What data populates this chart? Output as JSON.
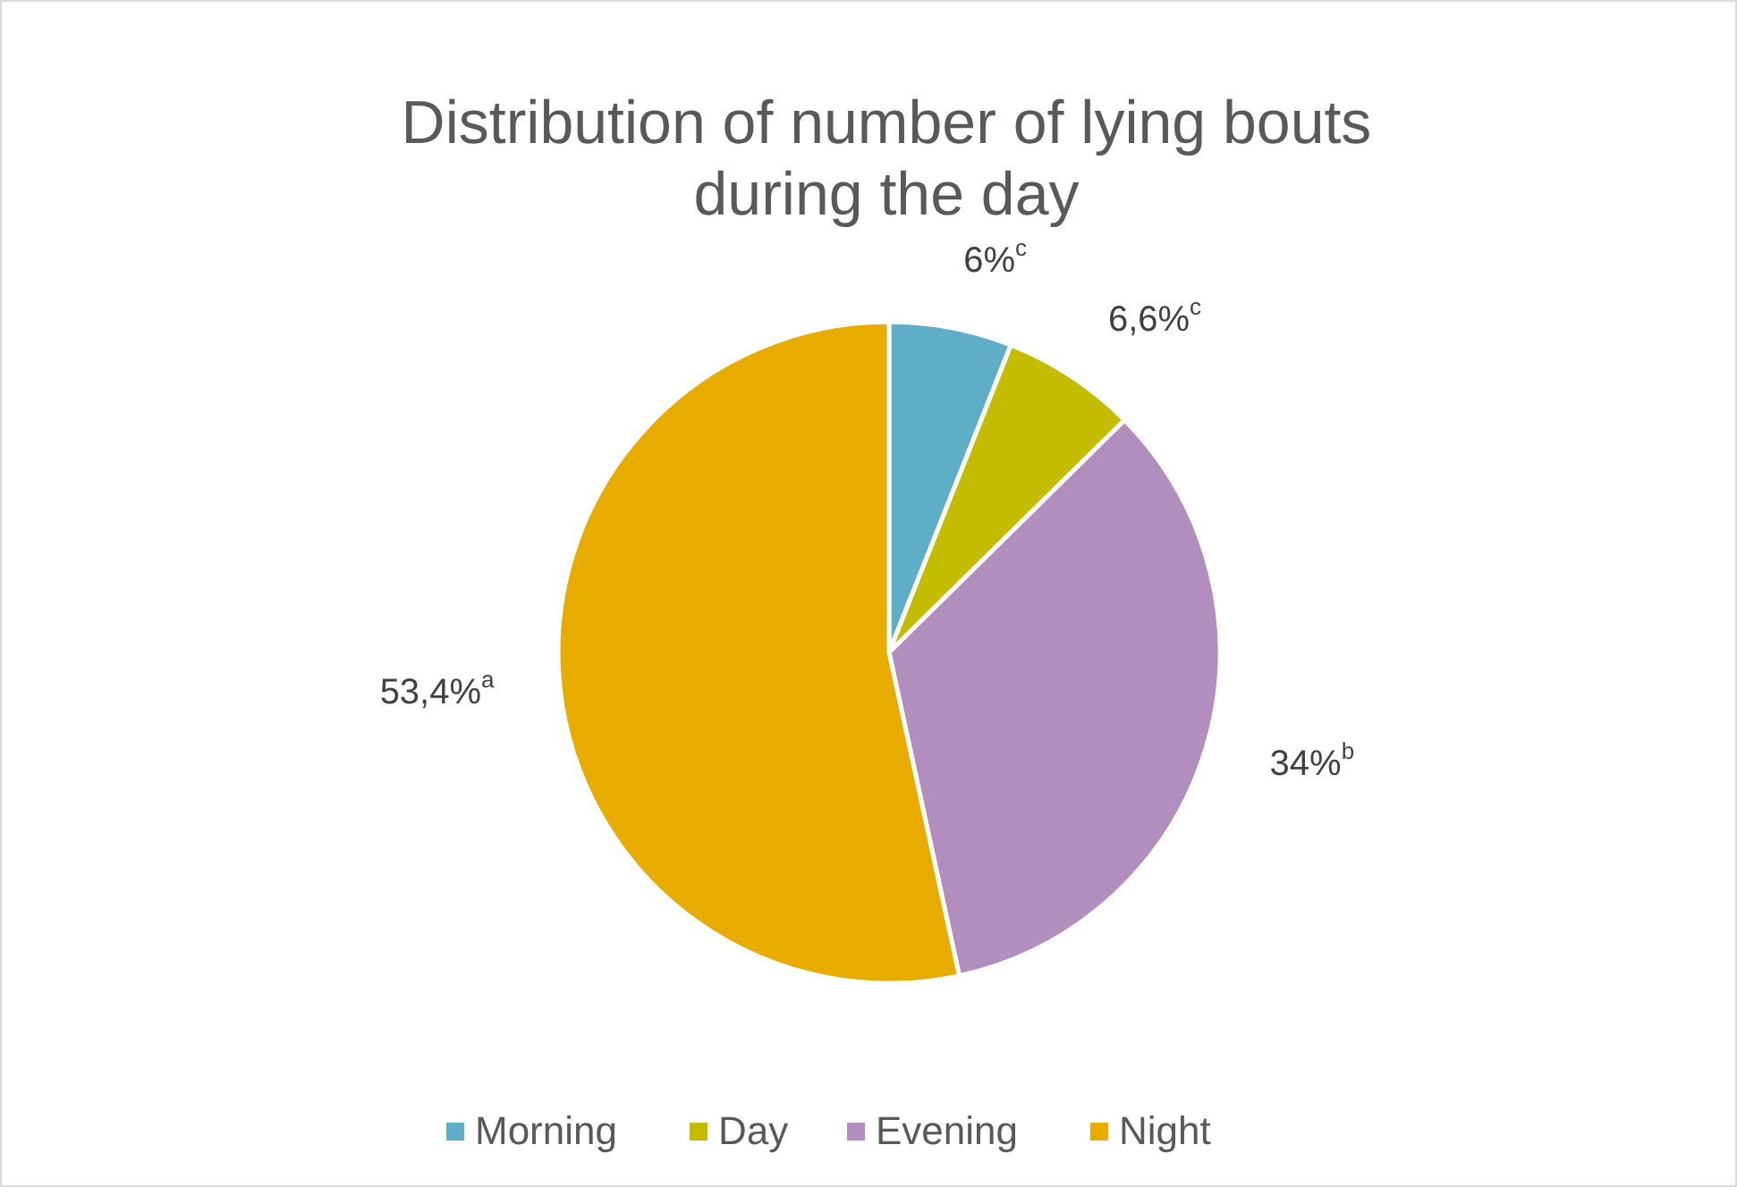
{
  "chart_data": {
    "type": "pie",
    "title": "Distribution of number of lying bouts during the day",
    "categories": [
      "Morning",
      "Day",
      "Evening",
      "Night"
    ],
    "values": [
      6,
      6.6,
      34,
      53.4
    ],
    "colors": [
      "#5eaec7",
      "#c3bc00",
      "#b28ebf",
      "#e8ab00"
    ],
    "value_labels": [
      "6%$^{c}$",
      "6,6%$^{c}$",
      "34%$^{b}$",
      "53,4%$^{a}$"
    ],
    "legend": "bottom"
  }
}
